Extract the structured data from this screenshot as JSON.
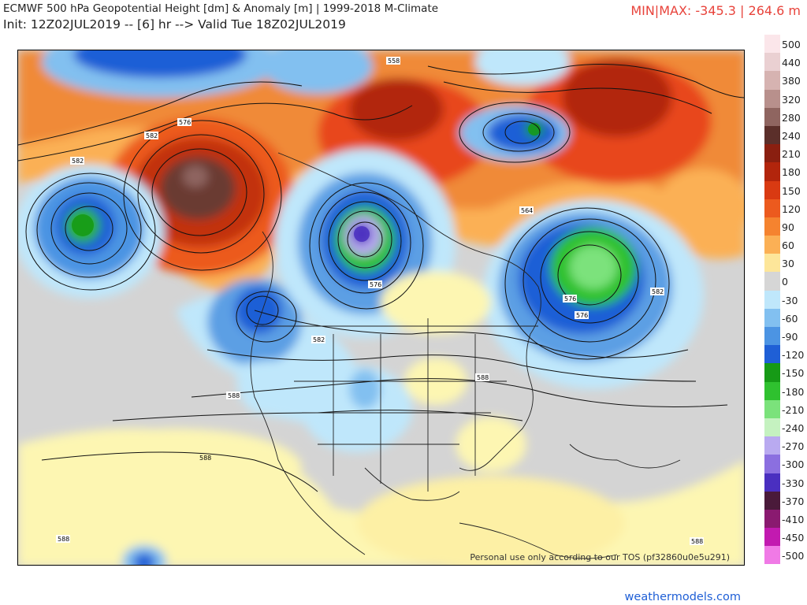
{
  "header": {
    "title": "ECMWF 500 hPa Geopotential Height [dm] & Anomaly [m] | 1999-2018 M-Climate",
    "init_line": "Init: 12Z02JUL2019 -- [6] hr --> Valid Tue 18Z02JUL2019",
    "min_max": "MIN|MAX: -345.3 | 264.6 m"
  },
  "map": {
    "tos_notice": "Personal use only according to our TOS (pf32860u0e5u291)",
    "contour_labels": [
      "558",
      "576",
      "582",
      "582",
      "576",
      "582",
      "564",
      "576",
      "576",
      "582",
      "588",
      "588",
      "588",
      "588",
      "588"
    ],
    "colors": {
      "land_bg": "#d6d6d6",
      "neutral": "#d4d4d4",
      "warm_light": "#fdf6b2",
      "warm_mid": "#fbb055",
      "warm_strong": "#e8461c",
      "warm_max": "#6b3a33",
      "cool_light": "#b7dcf5",
      "cool_mid": "#5c9fe4",
      "cool_strong": "#1f5fd6",
      "green": "#2db32d",
      "purple": "#8b6fe0"
    }
  },
  "colorbar": {
    "items": [
      {
        "label": "500",
        "color": "#fbe6ea"
      },
      {
        "label": "440",
        "color": "#ead0d2"
      },
      {
        "label": "380",
        "color": "#d6b3b1"
      },
      {
        "label": "320",
        "color": "#b8908c"
      },
      {
        "label": "280",
        "color": "#8f6560"
      },
      {
        "label": "240",
        "color": "#5b2f2a"
      },
      {
        "label": "210",
        "color": "#8a1f10"
      },
      {
        "label": "180",
        "color": "#b2250c"
      },
      {
        "label": "150",
        "color": "#d93a12"
      },
      {
        "label": "120",
        "color": "#ec5a1e"
      },
      {
        "label": "90",
        "color": "#f5832f"
      },
      {
        "label": "60",
        "color": "#fbb055"
      },
      {
        "label": "30",
        "color": "#fde69a"
      },
      {
        "label": "0",
        "color": "#d6d6d6"
      },
      {
        "label": "-30",
        "color": "#bfe7fb"
      },
      {
        "label": "-60",
        "color": "#82c0f0"
      },
      {
        "label": "-90",
        "color": "#4c94e3"
      },
      {
        "label": "-120",
        "color": "#1f5fd6"
      },
      {
        "label": "-150",
        "color": "#169a16"
      },
      {
        "label": "-180",
        "color": "#2fc12f"
      },
      {
        "label": "-210",
        "color": "#7be27b"
      },
      {
        "label": "-240",
        "color": "#c5f2c0"
      },
      {
        "label": "-270",
        "color": "#b9aaf0"
      },
      {
        "label": "-300",
        "color": "#8b6fe0"
      },
      {
        "label": "-330",
        "color": "#4a2fc0"
      },
      {
        "label": "-370",
        "color": "#4a1a3a"
      },
      {
        "label": "-410",
        "color": "#8a1a70"
      },
      {
        "label": "-450",
        "color": "#c21ab0"
      },
      {
        "label": "-500",
        "color": "#f07ae6"
      }
    ]
  },
  "footer": {
    "site": "weathermodels.com"
  }
}
